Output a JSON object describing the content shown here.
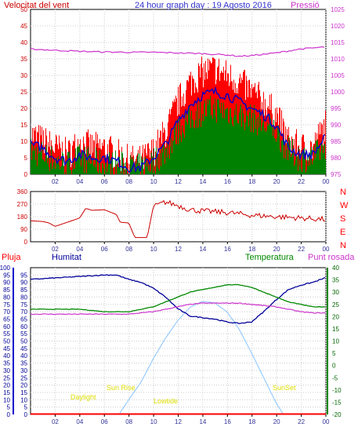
{
  "header": {
    "wind_label": "Velocitat del vent",
    "title": "24 hour graph day : 19 Agosto 2016",
    "pressure_label": "Pressió"
  },
  "compass": [
    "N",
    "W",
    "S",
    "E",
    "N"
  ],
  "panel3": {
    "rain_label": "Pluja",
    "humidity_label": "Humitat",
    "temperature_label": "Temperatura",
    "dewpoint_label": "Punt rosada",
    "annotations": {
      "daylight": "Daylight",
      "sunrise": "Sun Rise",
      "lowtide": "Lowtide",
      "sunset": "SunSet"
    }
  },
  "colors": {
    "wind_gust": "#ff0000",
    "wind_speed": "#008000",
    "wind_avg": "#0000cc",
    "pressure": "#cc33cc",
    "direction": "#cc0000",
    "humidity": "#000099",
    "temperature": "#008800",
    "dewpoint": "#cc33cc",
    "rain": "#ff0000",
    "solar": "#99ccff",
    "grid": "#cccccc"
  },
  "chart_data": [
    {
      "type": "line",
      "name": "wind-and-pressure",
      "x_ticks": [
        "02",
        "04",
        "06",
        "08",
        "10",
        "12",
        "14",
        "16",
        "18",
        "20",
        "22",
        "00"
      ],
      "xlim": [
        0,
        24
      ],
      "y_left": {
        "ticks": [
          "0",
          "5",
          "10",
          "15",
          "20",
          "25",
          "30",
          "35",
          "40",
          "45",
          "50"
        ],
        "ylim": [
          0,
          50
        ]
      },
      "y_right": {
        "ticks": [
          "975",
          "980",
          "985",
          "990",
          "995",
          "1000",
          "1005",
          "1010",
          "1015",
          "1020",
          "1025"
        ],
        "ylim": [
          975,
          1025
        ]
      },
      "grid": true,
      "series": [
        {
          "x": [
            0,
            1,
            2,
            3,
            4,
            5,
            6,
            7,
            8,
            9,
            10,
            11,
            12,
            13,
            14,
            15,
            16,
            17,
            18,
            19,
            20,
            21,
            22,
            23,
            24
          ],
          "values": [
            12,
            10,
            8,
            6,
            10,
            8,
            8,
            6,
            4,
            4,
            7,
            13,
            22,
            28,
            31,
            32,
            30,
            28,
            25,
            22,
            18,
            10,
            8,
            8,
            15
          ]
        },
        {
          "x": [
            0,
            1,
            2,
            3,
            4,
            5,
            6,
            7,
            8,
            9,
            10,
            11,
            12,
            13,
            14,
            15,
            16,
            17,
            18,
            19,
            20,
            21,
            22,
            23,
            24
          ],
          "values": [
            7,
            6,
            4,
            3,
            5,
            4,
            3,
            3,
            2,
            2,
            4,
            7,
            13,
            17,
            19,
            20,
            19,
            18,
            17,
            15,
            13,
            7,
            5,
            5,
            9
          ]
        },
        {
          "x": [
            0,
            1,
            2,
            3,
            4,
            5,
            6,
            7,
            8,
            9,
            10,
            11,
            12,
            13,
            14,
            15,
            16,
            17,
            18,
            19,
            20,
            21,
            22,
            23,
            24
          ],
          "values": [
            9,
            8,
            5,
            4,
            6,
            5,
            5,
            4,
            2,
            2,
            5,
            9,
            16,
            21,
            24,
            25,
            24,
            22,
            20,
            18,
            15,
            8,
            6,
            6,
            11
          ]
        },
        {
          "x": [
            0,
            2,
            4,
            6,
            8,
            10,
            12,
            14,
            16,
            17,
            18,
            20,
            22,
            24
          ],
          "values": [
            1013,
            1012.6,
            1012.3,
            1012.1,
            1012.0,
            1012.0,
            1011.8,
            1011.6,
            1011.2,
            1010.8,
            1011.0,
            1011.8,
            1013.0,
            1013.6
          ]
        }
      ]
    },
    {
      "type": "line",
      "name": "wind-direction",
      "x_ticks": [
        "02",
        "04",
        "06",
        "08",
        "10",
        "12",
        "14",
        "16",
        "18",
        "20",
        "22",
        "00"
      ],
      "xlim": [
        0,
        24
      ],
      "y_left": {
        "ticks": [
          "0",
          "90",
          "180",
          "270",
          "360"
        ],
        "ylim": [
          0,
          360
        ]
      },
      "grid": true,
      "series": [
        {
          "x": [
            0,
            1,
            1.5,
            2,
            3,
            4,
            4.5,
            5,
            6,
            7,
            7.3,
            8,
            8.5,
            9,
            9.5,
            10,
            11,
            12,
            13,
            14,
            15,
            16,
            17,
            18,
            19,
            20,
            21,
            22,
            23,
            24
          ],
          "values": [
            150,
            145,
            135,
            110,
            140,
            170,
            240,
            225,
            230,
            195,
            140,
            135,
            30,
            30,
            30,
            250,
            285,
            260,
            230,
            220,
            215,
            210,
            200,
            190,
            185,
            180,
            175,
            170,
            165,
            160
          ]
        }
      ]
    },
    {
      "type": "line",
      "name": "rain-humidity-temperature-dewpoint",
      "x_ticks": [
        "02",
        "04",
        "06",
        "08",
        "10",
        "12",
        "14",
        "16",
        "18",
        "20",
        "22",
        "00"
      ],
      "xlim": [
        0,
        24
      ],
      "y_rain": {
        "ticks": [
          "0",
          "5",
          "10",
          "15",
          "20",
          "25",
          "30",
          "35",
          "40",
          "45",
          "50",
          "55",
          "60",
          "65",
          "70",
          "75",
          "80",
          "85",
          "90",
          "95",
          "100"
        ],
        "ylim": [
          0,
          100
        ]
      },
      "y_humidity": {
        "ticks": [
          "0",
          "5",
          "10",
          "15",
          "20",
          "25",
          "30",
          "35",
          "40",
          "45",
          "50",
          "55",
          "60",
          "65",
          "70",
          "75",
          "80",
          "85",
          "90",
          "95"
        ],
        "ylim": [
          0,
          100
        ]
      },
      "y_temp": {
        "ticks": [
          "-20",
          "-15",
          "-10",
          "-5",
          "0",
          "5",
          "10",
          "15",
          "20",
          "25",
          "30",
          "35",
          "40"
        ],
        "ylim": [
          -20,
          40
        ]
      },
      "grid": true,
      "series": [
        {
          "x": [
            0,
            24
          ],
          "values": [
            0,
            0
          ]
        },
        {
          "x": [
            0,
            2,
            4,
            6,
            7,
            8,
            9,
            10,
            11,
            12,
            13,
            14,
            15,
            16,
            17,
            18,
            19,
            20,
            21,
            22,
            23,
            24
          ],
          "values": [
            92,
            93,
            94,
            95,
            95,
            92,
            90,
            86,
            80,
            72,
            67,
            66,
            65,
            63,
            62,
            63,
            70,
            78,
            85,
            88,
            90,
            93
          ]
        },
        {
          "x": [
            0,
            2,
            4,
            6,
            7,
            8,
            9,
            10,
            11,
            12,
            13,
            14,
            15,
            16,
            17,
            18,
            19,
            20,
            21,
            22,
            23,
            24
          ],
          "values": [
            23,
            23,
            23,
            22,
            22,
            22,
            23,
            24,
            26,
            28,
            30,
            31,
            32,
            33,
            33,
            32,
            30,
            28,
            26,
            25,
            24,
            24
          ]
        },
        {
          "x": [
            0,
            2,
            4,
            6,
            7,
            8,
            9,
            10,
            11,
            12,
            13,
            14,
            15,
            16,
            17,
            18,
            19,
            20,
            21,
            22,
            23,
            24
          ],
          "values": [
            21,
            21,
            21,
            21,
            21,
            21,
            21.5,
            22,
            23,
            24,
            25,
            25.5,
            25.5,
            25.5,
            25.5,
            25,
            24.5,
            24,
            23,
            22,
            21.5,
            21.5
          ]
        },
        {
          "x": [
            7.2,
            8,
            9,
            10,
            11,
            12,
            13,
            14,
            15,
            16,
            17,
            18,
            19,
            20,
            20.6
          ],
          "values": [
            0,
            10,
            22,
            38,
            52,
            64,
            73,
            77,
            76,
            70,
            58,
            42,
            25,
            8,
            0
          ]
        }
      ]
    }
  ]
}
